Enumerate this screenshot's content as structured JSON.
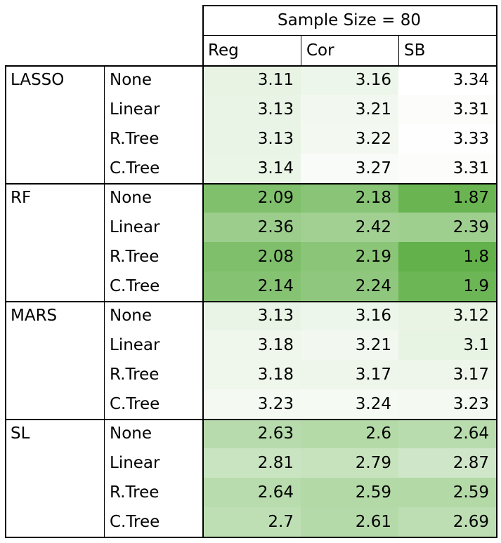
{
  "chart_data": {
    "type": "table",
    "header": {
      "title": "Sample Size = 80",
      "columns": [
        "Reg",
        "Cor",
        "SB"
      ]
    },
    "groups": [
      {
        "name": "LASSO",
        "rows": [
          {
            "label": "None",
            "values": [
              "3.11",
              "3.16",
              "3.34"
            ]
          },
          {
            "label": "Linear",
            "values": [
              "3.13",
              "3.21",
              "3.31"
            ]
          },
          {
            "label": "R.Tree",
            "values": [
              "3.13",
              "3.22",
              "3.33"
            ]
          },
          {
            "label": "C.Tree",
            "values": [
              "3.14",
              "3.27",
              "3.31"
            ]
          }
        ]
      },
      {
        "name": "RF",
        "rows": [
          {
            "label": "None",
            "values": [
              "2.09",
              "2.18",
              "1.87"
            ]
          },
          {
            "label": "Linear",
            "values": [
              "2.36",
              "2.42",
              "2.39"
            ]
          },
          {
            "label": "R.Tree",
            "values": [
              "2.08",
              "2.19",
              "1.8"
            ]
          },
          {
            "label": "C.Tree",
            "values": [
              "2.14",
              "2.24",
              "1.9"
            ]
          }
        ]
      },
      {
        "name": "MARS",
        "rows": [
          {
            "label": "None",
            "values": [
              "3.13",
              "3.16",
              "3.12"
            ]
          },
          {
            "label": "Linear",
            "values": [
              "3.18",
              "3.21",
              "3.1"
            ]
          },
          {
            "label": "R.Tree",
            "values": [
              "3.18",
              "3.17",
              "3.17"
            ]
          },
          {
            "label": "C.Tree",
            "values": [
              "3.23",
              "3.24",
              "3.23"
            ]
          }
        ]
      },
      {
        "name": "SL",
        "rows": [
          {
            "label": "None",
            "values": [
              "2.63",
              "2.6",
              "2.64"
            ]
          },
          {
            "label": "Linear",
            "values": [
              "2.81",
              "2.79",
              "2.87"
            ]
          },
          {
            "label": "R.Tree",
            "values": [
              "2.64",
              "2.59",
              "2.59"
            ]
          },
          {
            "label": "C.Tree",
            "values": [
              "2.7",
              "2.61",
              "2.69"
            ]
          }
        ]
      }
    ],
    "color_scale": {
      "min_value": 1.8,
      "max_value": 3.34,
      "low_color": "#63b14a",
      "high_color": "#ffffff"
    }
  }
}
